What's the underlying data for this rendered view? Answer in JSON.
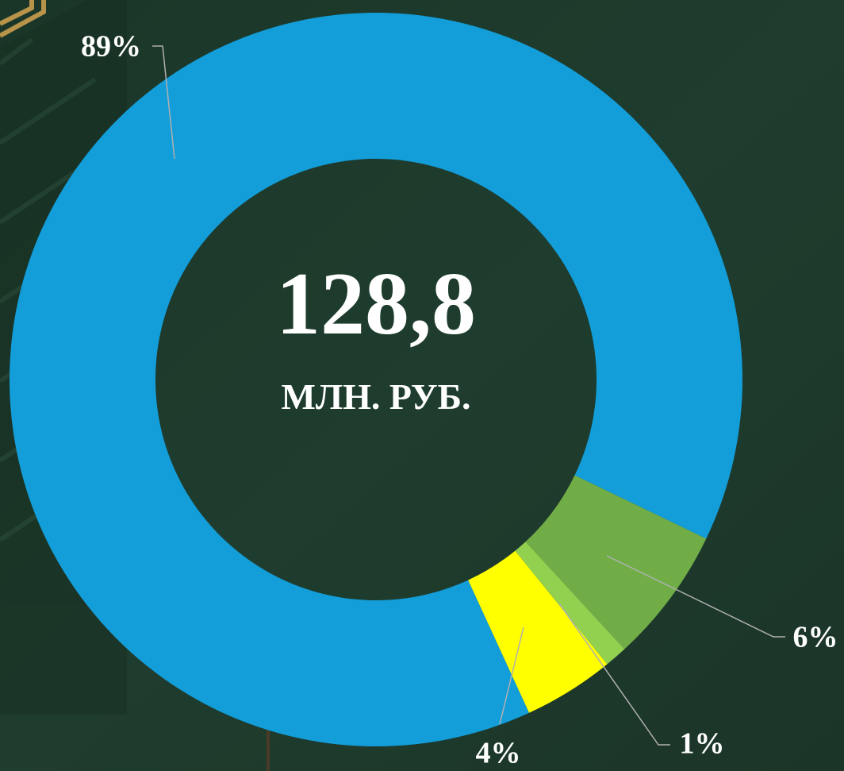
{
  "chart_data": {
    "type": "donut",
    "center_value": "128,8",
    "center_label": "МЛН. РУБ.",
    "series": [
      {
        "color": "#139dd9",
        "values": [
          89,
          6,
          1,
          4
        ]
      }
    ],
    "colors": [
      "#139dd9",
      "#70ad47",
      "#92d050",
      "#ffff00"
    ],
    "values": [
      89,
      6,
      1,
      4
    ],
    "value_labels": [
      "89%",
      "6%",
      "1%",
      "4%"
    ]
  }
}
